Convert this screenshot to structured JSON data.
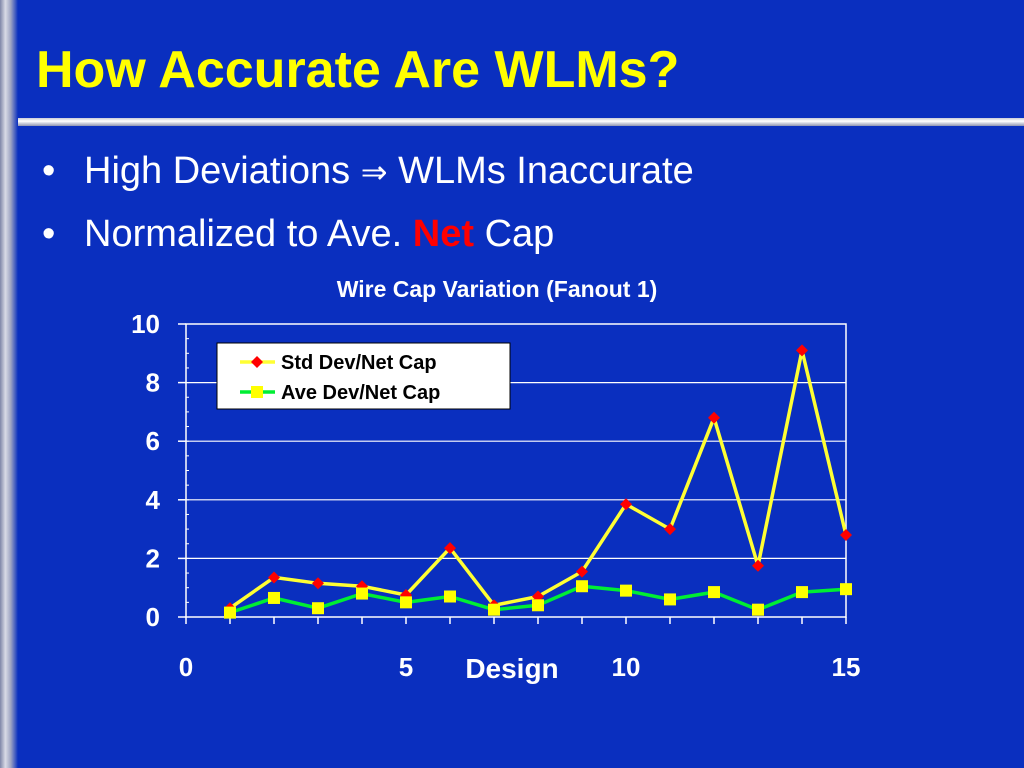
{
  "slide": {
    "title": "How Accurate Are WLMs?",
    "bullets": [
      {
        "pre": "High Deviations",
        "arrow": "⇒",
        "post": "WLMs Inaccurate"
      },
      {
        "pre": "Normalized to Ave.",
        "accent": "Net",
        "post": "Cap"
      }
    ],
    "colors": {
      "background": "#0a2fbf",
      "title": "#ffff00",
      "accent": "#ff0000",
      "text": "#ffffff"
    }
  },
  "chart_data": {
    "type": "line",
    "title": "Wire Cap Variation (Fanout 1)",
    "xlabel": "Design",
    "ylabel": "",
    "xlim": [
      0,
      15
    ],
    "ylim": [
      0,
      10
    ],
    "xticks": [
      0,
      5,
      10,
      15
    ],
    "yticks": [
      0,
      2,
      4,
      6,
      8,
      10
    ],
    "grid": true,
    "legend": "top-left",
    "x": [
      1,
      2,
      3,
      4,
      5,
      6,
      7,
      8,
      9,
      10,
      11,
      12,
      13,
      14,
      15
    ],
    "series": [
      {
        "name": "Std Dev/Net Cap",
        "line_color": "#ffff33",
        "marker": "diamond",
        "marker_color": "#ff0000",
        "values": [
          0.3,
          1.35,
          1.15,
          1.05,
          0.75,
          2.35,
          0.4,
          0.7,
          1.55,
          3.85,
          3.0,
          6.8,
          1.75,
          9.1,
          2.8
        ]
      },
      {
        "name": "Ave Dev/Net Cap",
        "line_color": "#00ee33",
        "marker": "square",
        "marker_color": "#ffff00",
        "values": [
          0.15,
          0.65,
          0.3,
          0.8,
          0.5,
          0.7,
          0.25,
          0.4,
          1.05,
          0.9,
          0.6,
          0.85,
          0.25,
          0.85,
          0.95
        ]
      }
    ]
  }
}
